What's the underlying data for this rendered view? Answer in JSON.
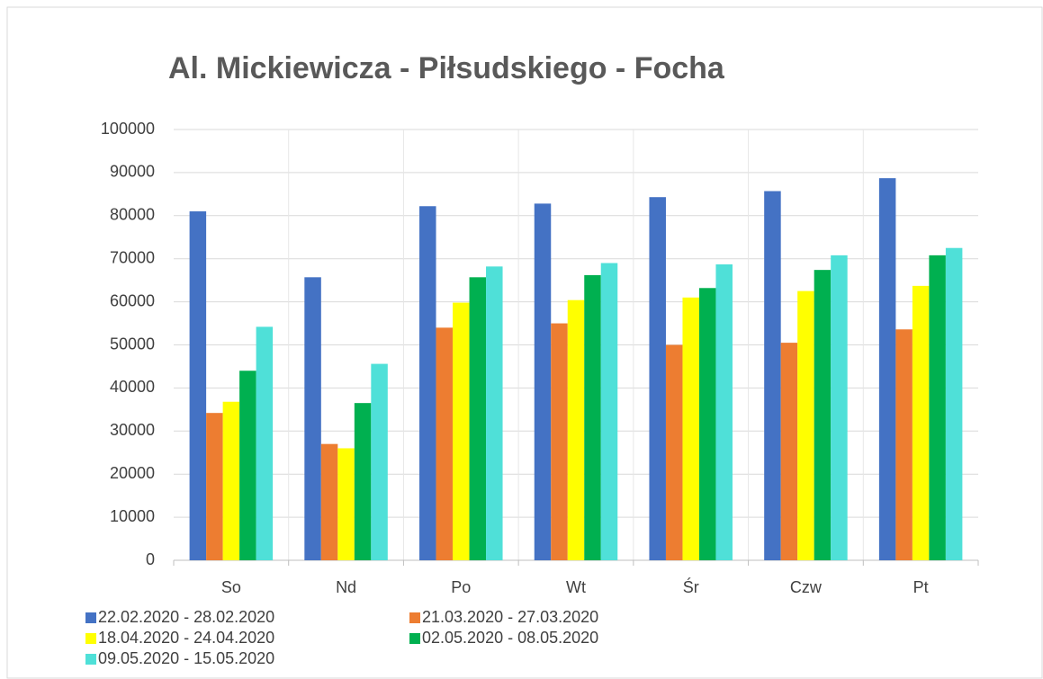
{
  "chart_data": {
    "type": "bar",
    "title": "Al. Mickiewicza - Piłsudskiego - Focha",
    "categories": [
      "So",
      "Nd",
      "Po",
      "Wt",
      "Śr",
      "Czw",
      "Pt"
    ],
    "series": [
      {
        "name": "22.02.2020 - 28.02.2020",
        "color": "#4472c4",
        "values": [
          81000,
          65700,
          82200,
          82800,
          84300,
          85700,
          88700
        ]
      },
      {
        "name": "21.03.2020 - 27.03.2020",
        "color": "#ed7d31",
        "values": [
          34200,
          27000,
          54000,
          55000,
          50000,
          50500,
          53600
        ]
      },
      {
        "name": "18.04.2020 - 24.04.2020",
        "color": "#ffff00",
        "values": [
          36800,
          26000,
          59800,
          60400,
          61000,
          62500,
          63700
        ]
      },
      {
        "name": "02.05.2020 - 08.05.2020",
        "color": "#00b050",
        "values": [
          44000,
          36500,
          65700,
          66200,
          63200,
          67400,
          70800
        ]
      },
      {
        "name": "09.05.2020 - 15.05.2020",
        "color": "#4fe0d8",
        "values": [
          54200,
          45600,
          68200,
          69000,
          68700,
          70800,
          72500
        ]
      }
    ],
    "ylim": [
      0,
      100000
    ],
    "yticks": [
      0,
      10000,
      20000,
      30000,
      40000,
      50000,
      60000,
      70000,
      80000,
      90000,
      100000
    ],
    "grid": true,
    "legend": "bottom"
  }
}
